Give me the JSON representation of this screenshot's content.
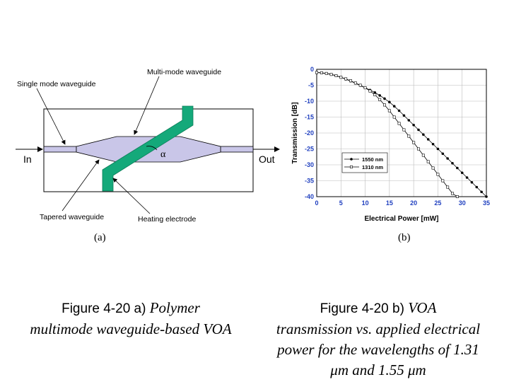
{
  "diagram": {
    "labels": {
      "single_mode": "Single mode waveguide",
      "multi_mode": "Multi-mode waveguide",
      "in": "In",
      "out": "Out",
      "alpha": "α",
      "tapered": "Tapered waveguide",
      "heating": "Heating electrode"
    },
    "colors": {
      "waveguide": "#c9c6e8",
      "electrode": "#14a97a"
    }
  },
  "sublabels": {
    "a": "(a)",
    "b": "(b)"
  },
  "caption_a": {
    "prefix": "Figure 4-20 a) ",
    "italic1": "Polymer",
    "italic2": "multimode waveguide-based VOA"
  },
  "caption_b": {
    "prefix": "Figure 4-20 b) ",
    "italic1": "VOA",
    "line2": "transmission vs. applied electrical",
    "line3": "power for the wavelengths of 1.31",
    "line4": "μm and 1.55 μm"
  },
  "chart_data": {
    "type": "line",
    "xlabel": "Electrical Power [mW]",
    "ylabel": "Transmission [dB]",
    "xlim": [
      0,
      35
    ],
    "ylim": [
      -40,
      0
    ],
    "xticks": [
      0,
      5,
      10,
      15,
      20,
      25,
      30,
      35
    ],
    "yticks": [
      0,
      -5,
      -10,
      -15,
      -20,
      -25,
      -30,
      -35,
      -40
    ],
    "grid": true,
    "legend_position": "bottom-left",
    "series": [
      {
        "name": "1550 nm",
        "marker": "filled-circle",
        "x": [
          0,
          1,
          2,
          3,
          4,
          5,
          6,
          7,
          8,
          9,
          10,
          11,
          12,
          13,
          14,
          15,
          16,
          17,
          18,
          19,
          20,
          21,
          22,
          23,
          24,
          25,
          26,
          27,
          28,
          29,
          30,
          31,
          32,
          33,
          34,
          35
        ],
        "y": [
          -1.0,
          -1.1,
          -1.3,
          -1.6,
          -2.0,
          -2.5,
          -3.1,
          -3.7,
          -4.4,
          -5.1,
          -5.8,
          -6.5,
          -7.3,
          -8.2,
          -9.2,
          -10.3,
          -11.6,
          -13.0,
          -14.5,
          -16.0,
          -17.5,
          -19.0,
          -20.5,
          -22.0,
          -23.5,
          -25.0,
          -26.5,
          -28.0,
          -29.5,
          -31.0,
          -32.5,
          -34.0,
          -35.5,
          -37.0,
          -38.5,
          -40.0
        ]
      },
      {
        "name": "1310 nm",
        "marker": "open-square",
        "x": [
          0,
          1,
          2,
          3,
          4,
          5,
          6,
          7,
          8,
          9,
          10,
          11,
          12,
          13,
          14,
          15,
          16,
          17,
          18,
          19,
          20,
          21,
          22,
          23,
          24,
          25,
          26,
          27,
          28,
          29
        ],
        "y": [
          -1.0,
          -1.1,
          -1.3,
          -1.6,
          -2.0,
          -2.5,
          -3.0,
          -3.6,
          -4.3,
          -5.0,
          -5.8,
          -6.8,
          -8.0,
          -9.5,
          -11.2,
          -13.0,
          -15.0,
          -17.0,
          -19.0,
          -21.0,
          -23.0,
          -25.0,
          -27.0,
          -29.0,
          -31.0,
          -33.0,
          -35.0,
          -37.0,
          -39.0,
          -40.0
        ]
      }
    ]
  }
}
